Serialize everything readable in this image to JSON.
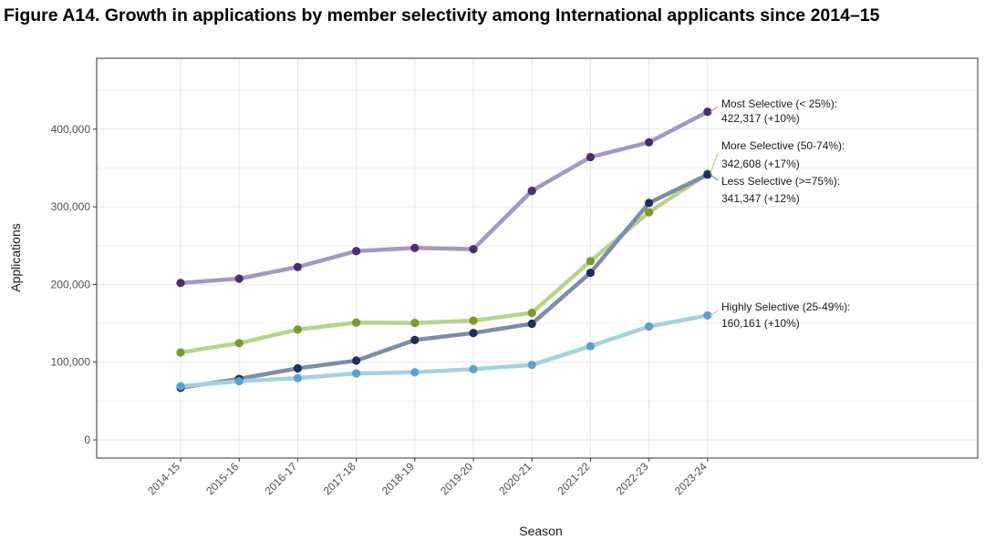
{
  "figure": {
    "title": "Figure A14. Growth in applications by member selectivity among International applicants since 2014–15"
  },
  "chart_data": {
    "type": "line",
    "title": "Figure A14. Growth in applications by member selectivity among International applicants since 2014–15",
    "xlabel": "Season",
    "ylabel": "Applications",
    "categories": [
      "2014-15",
      "2015-16",
      "2016-17",
      "2017-18",
      "2018-19",
      "2019-20",
      "2020-21",
      "2021-22",
      "2022-23",
      "2023-24"
    ],
    "ylim": [
      0,
      460000
    ],
    "yticks": [
      0,
      100000,
      200000,
      300000,
      400000
    ],
    "ytick_labels": [
      "0",
      "100,000",
      "200,000",
      "300,000",
      "400,000"
    ],
    "grid": true,
    "legend": "none (direct labels at line ends)",
    "series": [
      {
        "key": "most",
        "values": [
          202000,
          207500,
          222500,
          243000,
          247000,
          245500,
          320500,
          364000,
          383000,
          422317
        ],
        "line_color": "#a497c2",
        "point_color": "#4b2e6e",
        "label_lines": [
          "Most Selective (< 25%):",
          "422,317 (+10%)"
        ]
      },
      {
        "key": "more",
        "values": [
          112500,
          124500,
          142000,
          151000,
          150500,
          153500,
          163500,
          230000,
          293000,
          342608
        ],
        "line_color": "#b8d28e",
        "point_color": "#7a9a2e",
        "label_lines": [
          "More Selective (50-74%):",
          "342,608 (+17%)"
        ]
      },
      {
        "key": "less",
        "values": [
          67000,
          78500,
          92000,
          102000,
          128500,
          137500,
          149500,
          215000,
          305000,
          341347
        ],
        "line_color": "#7d8cab",
        "point_color": "#1f2e5a",
        "label_lines": [
          "Less Selective (>=75%):",
          "341,347 (+12%)"
        ]
      },
      {
        "key": "highly",
        "values": [
          69000,
          75500,
          79500,
          85500,
          87000,
          91000,
          96500,
          120500,
          146000,
          160161
        ],
        "line_color": "#a6cfe2",
        "point_color": "#5f9fcb",
        "label_lines": [
          "Highly Selective (25-49%):",
          "160,161 (+10%)"
        ]
      }
    ],
    "colors": {
      "panel_border": "#333333",
      "grid_major": "#e6e6e6",
      "grid_minor": "#f2f2f2",
      "axis_text": "#4d4d4d"
    }
  }
}
